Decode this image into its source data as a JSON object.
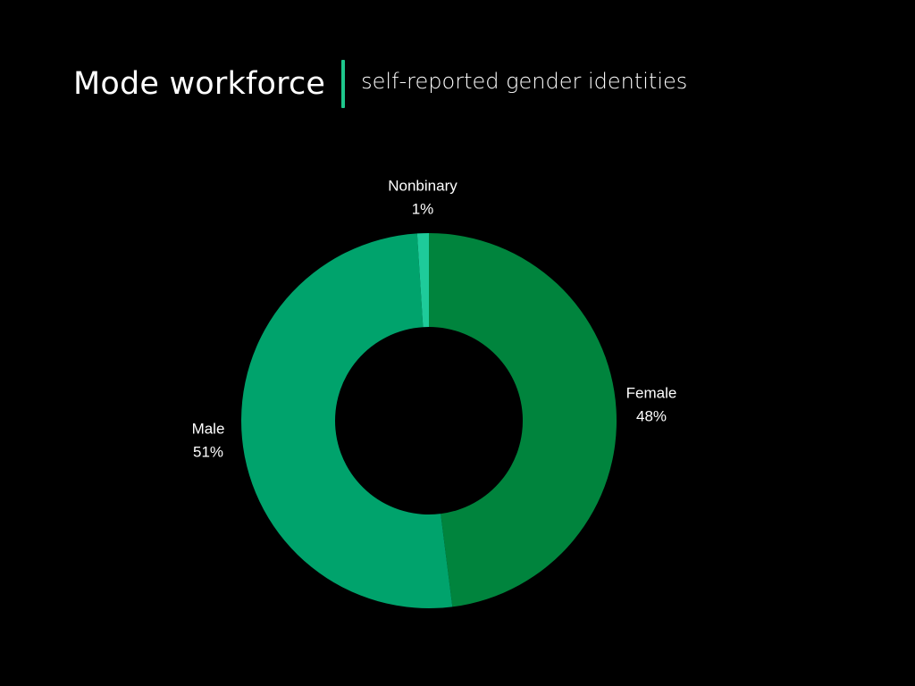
{
  "header": {
    "title": "Mode workforce",
    "subtitle": "self-reported gender identities",
    "divider_color": "#1ec78c"
  },
  "chart_data": {
    "type": "pie",
    "donut": true,
    "title": "Mode workforce",
    "subtitle": "self-reported gender identities",
    "slices": [
      {
        "name": "Female",
        "value": 48,
        "label": "48%",
        "color": "#00843d"
      },
      {
        "name": "Male",
        "value": 51,
        "label": "51%",
        "color": "#00a36c"
      },
      {
        "name": "Nonbinary",
        "value": 1,
        "label": "1%",
        "color": "#1ecb9a"
      }
    ]
  }
}
